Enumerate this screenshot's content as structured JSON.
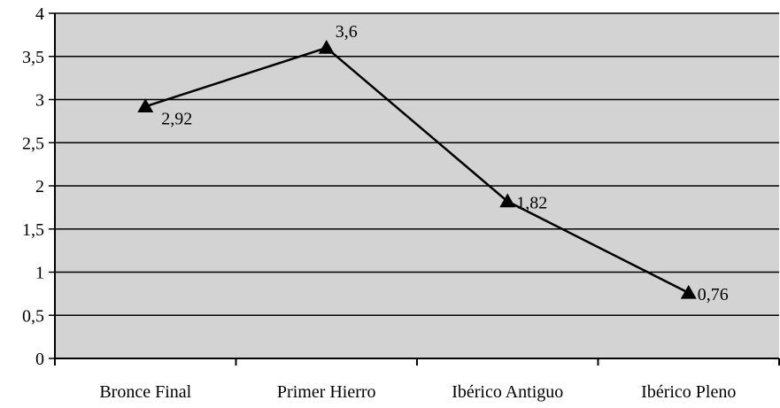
{
  "colors": {
    "plot_background": "#d3d3d3",
    "line": "#000000",
    "grid": "#000000"
  },
  "chart_data": {
    "type": "line",
    "title": "",
    "xlabel": "",
    "ylabel": "",
    "categories": [
      "Bronce Final",
      "Primer Hierro",
      "Ibérico Antiguo",
      "Ibérico Pleno"
    ],
    "series": [
      {
        "values": [
          2.92,
          3.6,
          1.82,
          0.76
        ],
        "labels": [
          "2,92",
          "3,6",
          "1,82",
          "0,76"
        ],
        "marker": "triangle"
      }
    ],
    "ylim": [
      0,
      4
    ],
    "yticks": [
      0,
      0.5,
      1,
      1.5,
      2,
      2.5,
      3,
      3.5,
      4
    ],
    "ytick_labels": [
      "0",
      "0,5",
      "1",
      "1,5",
      "2",
      "2,5",
      "3",
      "3,5",
      "4"
    ],
    "grid": true,
    "legend": "none"
  }
}
